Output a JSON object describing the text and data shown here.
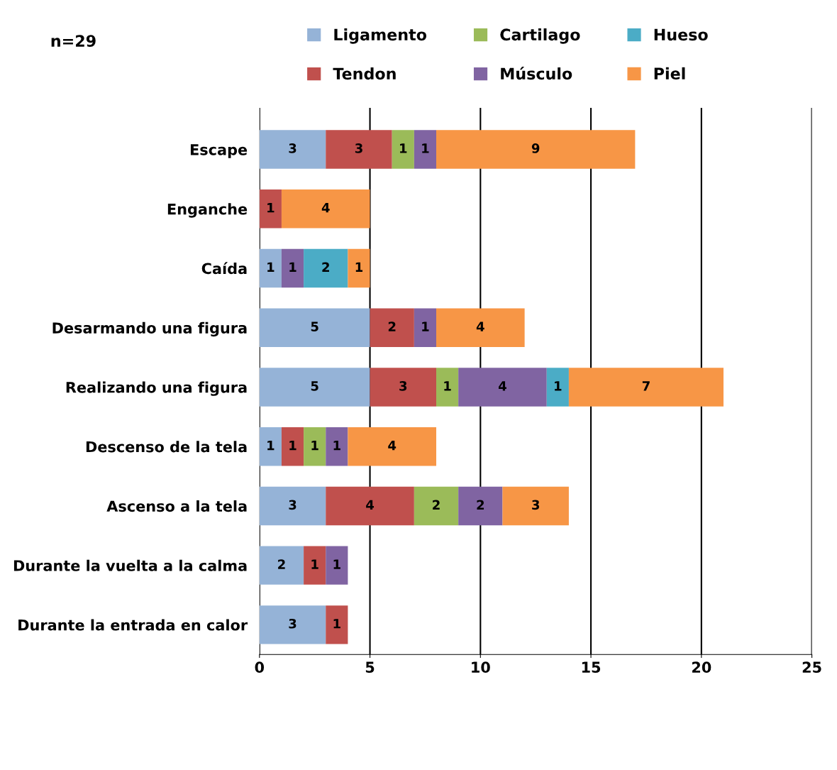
{
  "chart_data": {
    "type": "bar",
    "orientation": "horizontal",
    "stacked": true,
    "data_labels": true,
    "categories": [
      "Escape",
      "Enganche",
      "Caída",
      "Desarmando una figura",
      "Realizando una figura",
      "Descenso de la tela",
      "Ascenso a la tela",
      "Durante la vuelta a la calma",
      "Durante la entrada en calor"
    ],
    "series": [
      {
        "name": "Ligamento",
        "color": "#95b3d7",
        "values": [
          3,
          null,
          1,
          5,
          5,
          1,
          3,
          2,
          3
        ]
      },
      {
        "name": "Tendon",
        "color": "#c0504d",
        "values": [
          3,
          1,
          null,
          2,
          3,
          1,
          4,
          1,
          1
        ]
      },
      {
        "name": "Cartilago",
        "color": "#9bbb59",
        "values": [
          1,
          null,
          null,
          null,
          1,
          1,
          2,
          null,
          null
        ]
      },
      {
        "name": "Músculo",
        "color": "#8064a2",
        "values": [
          1,
          null,
          1,
          1,
          4,
          1,
          2,
          1,
          null
        ]
      },
      {
        "name": "Hueso",
        "color": "#4bacc6",
        "values": [
          null,
          null,
          2,
          null,
          1,
          null,
          null,
          null,
          null
        ]
      },
      {
        "name": "Piel",
        "color": "#f79646",
        "values": [
          9,
          4,
          1,
          4,
          7,
          4,
          3,
          null,
          null
        ]
      }
    ],
    "xlim": [
      0,
      25
    ],
    "xticks": [
      0,
      5,
      10,
      15,
      20,
      25
    ],
    "grid": "x",
    "legend": "top",
    "annotations": [
      "n=29"
    ]
  }
}
